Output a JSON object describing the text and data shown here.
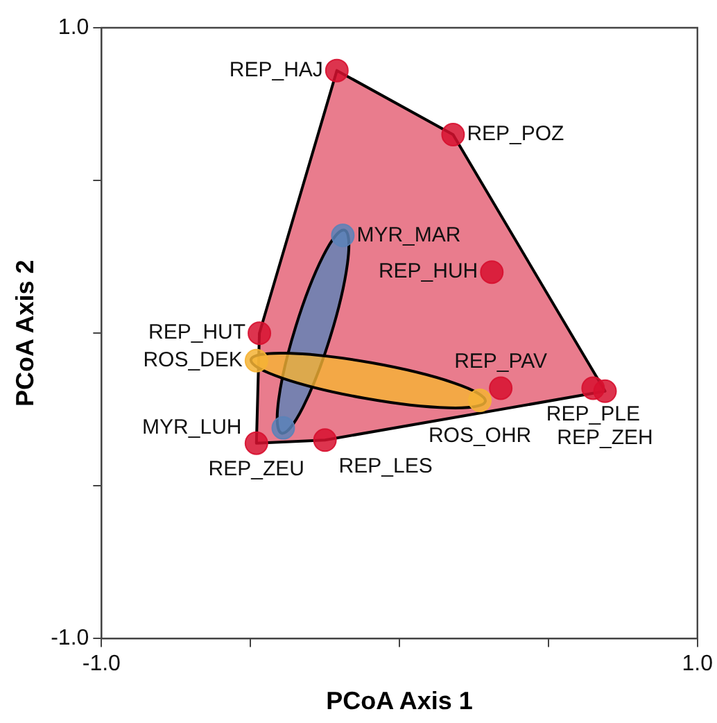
{
  "chart_data": {
    "type": "scatter",
    "xlabel": "PCoA Axis 1",
    "ylabel": "PCoA Axis 2",
    "xlim": [
      -1,
      1
    ],
    "ylim": [
      -1,
      1
    ],
    "xticks": [
      {
        "value": -1,
        "label": "-1.0"
      },
      {
        "value": -0.5,
        "label": null
      },
      {
        "value": 0,
        "label": null
      },
      {
        "value": 0.5,
        "label": null
      },
      {
        "value": 1,
        "label": "1.0"
      }
    ],
    "yticks": [
      {
        "value": -1,
        "label": "-1.0"
      },
      {
        "value": -0.5,
        "label": null
      },
      {
        "value": 0,
        "label": null
      },
      {
        "value": 0.5,
        "label": null
      },
      {
        "value": 1,
        "label": "1.0"
      }
    ],
    "grid": false,
    "legend": false,
    "marker": "circle",
    "series": [
      {
        "color": "#d7102f",
        "x": [
          -0.21,
          0.18,
          0.31,
          -0.47,
          0.34,
          0.65,
          0.69,
          -0.48,
          -0.25
        ],
        "values": [
          0.86,
          0.65,
          0.2,
          0.0,
          -0.18,
          -0.18,
          -0.19,
          -0.36,
          -0.35
        ]
      },
      {
        "color": "#5b82b8",
        "x": [
          -0.19,
          -0.39
        ],
        "values": [
          0.32,
          -0.31
        ]
      },
      {
        "color": "#f5b335",
        "x": [
          -0.48,
          0.27
        ],
        "values": [
          -0.09,
          -0.22
        ]
      }
    ],
    "annotations": [
      {
        "text": "REP_HAJ",
        "x": -0.21,
        "y": 0.86
      },
      {
        "text": "REP_POZ",
        "x": 0.18,
        "y": 0.65
      },
      {
        "text": "REP_HUH",
        "x": 0.31,
        "y": 0.2
      },
      {
        "text": "MYR_MAR",
        "x": -0.19,
        "y": 0.32
      },
      {
        "text": "REP_HUT",
        "x": -0.47,
        "y": 0.0
      },
      {
        "text": "ROS_DEK",
        "x": -0.48,
        "y": -0.09
      },
      {
        "text": "REP_PAV",
        "x": 0.34,
        "y": -0.18
      },
      {
        "text": "REP_PLE",
        "x": 0.65,
        "y": -0.18
      },
      {
        "text": "REP_ZEH",
        "x": 0.69,
        "y": -0.19
      },
      {
        "text": "ROS_OHR",
        "x": 0.27,
        "y": -0.22
      },
      {
        "text": "MYR_LUH",
        "x": -0.39,
        "y": -0.31
      },
      {
        "text": "REP_ZEU",
        "x": -0.48,
        "y": -0.36
      },
      {
        "text": "REP_LES",
        "x": -0.25,
        "y": -0.35
      }
    ]
  }
}
